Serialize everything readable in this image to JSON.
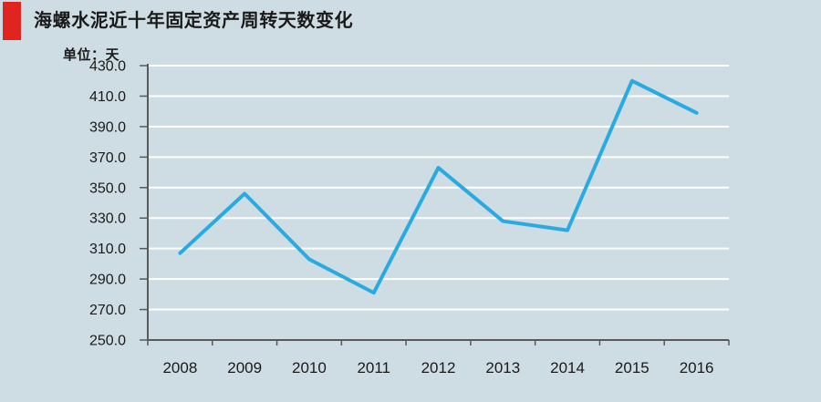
{
  "title": "海螺水泥近十年固定资产周转天数变化",
  "unit_label": "单位：天",
  "colors": {
    "background": "#cedce3",
    "accent": "#e02420",
    "line": "#29abe2",
    "grid": "#ffffff",
    "axis": "#595959",
    "text": "#1a1a1a"
  },
  "chart_data": {
    "type": "line",
    "title": "海螺水泥近十年固定资产周转天数变化",
    "ylabel": "单位：天",
    "xlabel": "",
    "categories": [
      "2008",
      "2009",
      "2010",
      "2011",
      "2012",
      "2013",
      "2014",
      "2015",
      "2016"
    ],
    "series": [
      {
        "name": "固定资产周转天数",
        "values": [
          307,
          346,
          303,
          281,
          363,
          328,
          322,
          420,
          399
        ]
      }
    ],
    "ylim": [
      250,
      430
    ],
    "ytick_step": 20,
    "ytick_labels": [
      "250.0",
      "270.0",
      "290.0",
      "310.0",
      "330.0",
      "350.0",
      "370.0",
      "390.0",
      "410.0",
      "430.0"
    ],
    "grid": true,
    "legend_position": "none",
    "line_color": "#29abe2"
  }
}
